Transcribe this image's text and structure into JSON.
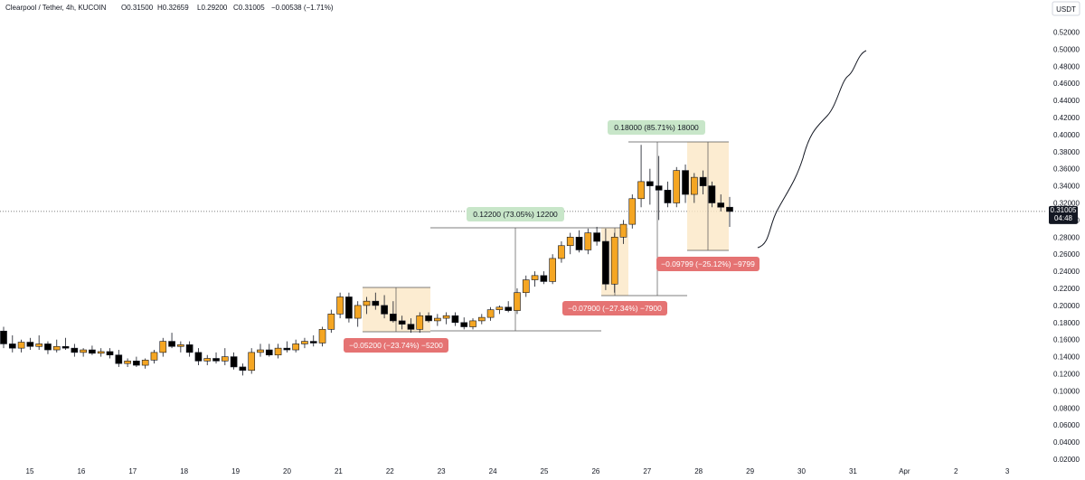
{
  "header": {
    "symbol": "Clearpool / Tether, 4h, KUCOIN",
    "open": "O0.31500",
    "high": "H0.32659",
    "low": "L0.29200",
    "close": "C0.31005",
    "change": "−0.00538 (−1.71%)"
  },
  "currency": "USDT",
  "price_badge": {
    "price": "0.31005",
    "countdown": "04:48"
  },
  "colors": {
    "up": "#f5a623",
    "down": "#000000",
    "box_fill": "#fbe7c6",
    "gain_label": "#c8e6c9",
    "loss_label": "#e57373",
    "text": "#131722"
  },
  "chart_data": {
    "type": "candlestick",
    "interval": "4h",
    "current_price": 0.31005,
    "y_axis": {
      "ticks": [
        "0.02000",
        "0.04000",
        "0.06000",
        "0.08000",
        "0.10000",
        "0.12000",
        "0.14000",
        "0.16000",
        "0.18000",
        "0.20000",
        "0.22000",
        "0.24000",
        "0.26000",
        "0.28000",
        "0.30000",
        "0.32000",
        "0.34000",
        "0.36000",
        "0.38000",
        "0.40000",
        "0.42000",
        "0.44000",
        "0.46000",
        "0.48000",
        "0.50000",
        "0.52000"
      ],
      "ylim": [
        0,
        0.53
      ]
    },
    "x_axis": {
      "ticks": [
        "15",
        "16",
        "17",
        "18",
        "19",
        "20",
        "21",
        "22",
        "23",
        "24",
        "25",
        "26",
        "27",
        "28",
        "29",
        "30",
        "31",
        "Apr",
        "2",
        "3"
      ]
    },
    "candles": [
      {
        "o": 0.17,
        "h": 0.175,
        "l": 0.15,
        "c": 0.155
      },
      {
        "o": 0.155,
        "h": 0.165,
        "l": 0.145,
        "c": 0.15
      },
      {
        "o": 0.15,
        "h": 0.16,
        "l": 0.145,
        "c": 0.157
      },
      {
        "o": 0.157,
        "h": 0.162,
        "l": 0.148,
        "c": 0.152
      },
      {
        "o": 0.152,
        "h": 0.165,
        "l": 0.148,
        "c": 0.155
      },
      {
        "o": 0.155,
        "h": 0.158,
        "l": 0.143,
        "c": 0.148
      },
      {
        "o": 0.148,
        "h": 0.16,
        "l": 0.145,
        "c": 0.152
      },
      {
        "o": 0.152,
        "h": 0.162,
        "l": 0.148,
        "c": 0.15
      },
      {
        "o": 0.15,
        "h": 0.155,
        "l": 0.14,
        "c": 0.145
      },
      {
        "o": 0.145,
        "h": 0.15,
        "l": 0.14,
        "c": 0.148
      },
      {
        "o": 0.148,
        "h": 0.153,
        "l": 0.142,
        "c": 0.144
      },
      {
        "o": 0.144,
        "h": 0.15,
        "l": 0.14,
        "c": 0.146
      },
      {
        "o": 0.146,
        "h": 0.15,
        "l": 0.138,
        "c": 0.142
      },
      {
        "o": 0.142,
        "h": 0.148,
        "l": 0.128,
        "c": 0.132
      },
      {
        "o": 0.132,
        "h": 0.138,
        "l": 0.128,
        "c": 0.135
      },
      {
        "o": 0.135,
        "h": 0.14,
        "l": 0.128,
        "c": 0.13
      },
      {
        "o": 0.13,
        "h": 0.138,
        "l": 0.126,
        "c": 0.136
      },
      {
        "o": 0.136,
        "h": 0.148,
        "l": 0.132,
        "c": 0.145
      },
      {
        "o": 0.145,
        "h": 0.162,
        "l": 0.14,
        "c": 0.158
      },
      {
        "o": 0.158,
        "h": 0.168,
        "l": 0.15,
        "c": 0.152
      },
      {
        "o": 0.152,
        "h": 0.158,
        "l": 0.145,
        "c": 0.154
      },
      {
        "o": 0.154,
        "h": 0.158,
        "l": 0.14,
        "c": 0.145
      },
      {
        "o": 0.145,
        "h": 0.15,
        "l": 0.13,
        "c": 0.135
      },
      {
        "o": 0.135,
        "h": 0.142,
        "l": 0.13,
        "c": 0.138
      },
      {
        "o": 0.138,
        "h": 0.145,
        "l": 0.132,
        "c": 0.135
      },
      {
        "o": 0.135,
        "h": 0.15,
        "l": 0.13,
        "c": 0.14
      },
      {
        "o": 0.14,
        "h": 0.145,
        "l": 0.125,
        "c": 0.128
      },
      {
        "o": 0.128,
        "h": 0.132,
        "l": 0.118,
        "c": 0.124
      },
      {
        "o": 0.124,
        "h": 0.15,
        "l": 0.12,
        "c": 0.145
      },
      {
        "o": 0.145,
        "h": 0.155,
        "l": 0.14,
        "c": 0.148
      },
      {
        "o": 0.148,
        "h": 0.155,
        "l": 0.14,
        "c": 0.142
      },
      {
        "o": 0.142,
        "h": 0.155,
        "l": 0.138,
        "c": 0.15
      },
      {
        "o": 0.15,
        "h": 0.158,
        "l": 0.145,
        "c": 0.148
      },
      {
        "o": 0.148,
        "h": 0.16,
        "l": 0.145,
        "c": 0.155
      },
      {
        "o": 0.155,
        "h": 0.162,
        "l": 0.15,
        "c": 0.158
      },
      {
        "o": 0.158,
        "h": 0.165,
        "l": 0.152,
        "c": 0.156
      },
      {
        "o": 0.156,
        "h": 0.175,
        "l": 0.152,
        "c": 0.172
      },
      {
        "o": 0.172,
        "h": 0.195,
        "l": 0.168,
        "c": 0.19
      },
      {
        "o": 0.19,
        "h": 0.215,
        "l": 0.185,
        "c": 0.21
      },
      {
        "o": 0.21,
        "h": 0.215,
        "l": 0.18,
        "c": 0.185
      },
      {
        "o": 0.185,
        "h": 0.205,
        "l": 0.175,
        "c": 0.2
      },
      {
        "o": 0.2,
        "h": 0.21,
        "l": 0.19,
        "c": 0.205
      },
      {
        "o": 0.205,
        "h": 0.215,
        "l": 0.195,
        "c": 0.2
      },
      {
        "o": 0.2,
        "h": 0.212,
        "l": 0.185,
        "c": 0.19
      },
      {
        "o": 0.19,
        "h": 0.205,
        "l": 0.18,
        "c": 0.182
      },
      {
        "o": 0.182,
        "h": 0.188,
        "l": 0.172,
        "c": 0.178
      },
      {
        "o": 0.178,
        "h": 0.185,
        "l": 0.168,
        "c": 0.172
      },
      {
        "o": 0.172,
        "h": 0.192,
        "l": 0.168,
        "c": 0.188
      },
      {
        "o": 0.188,
        "h": 0.192,
        "l": 0.18,
        "c": 0.182
      },
      {
        "o": 0.182,
        "h": 0.19,
        "l": 0.176,
        "c": 0.185
      },
      {
        "o": 0.185,
        "h": 0.192,
        "l": 0.178,
        "c": 0.188
      },
      {
        "o": 0.188,
        "h": 0.192,
        "l": 0.176,
        "c": 0.18
      },
      {
        "o": 0.18,
        "h": 0.186,
        "l": 0.172,
        "c": 0.175
      },
      {
        "o": 0.175,
        "h": 0.185,
        "l": 0.172,
        "c": 0.182
      },
      {
        "o": 0.182,
        "h": 0.19,
        "l": 0.178,
        "c": 0.186
      },
      {
        "o": 0.186,
        "h": 0.198,
        "l": 0.182,
        "c": 0.195
      },
      {
        "o": 0.195,
        "h": 0.2,
        "l": 0.19,
        "c": 0.198
      },
      {
        "o": 0.198,
        "h": 0.205,
        "l": 0.192,
        "c": 0.194
      },
      {
        "o": 0.194,
        "h": 0.22,
        "l": 0.19,
        "c": 0.215
      },
      {
        "o": 0.215,
        "h": 0.235,
        "l": 0.21,
        "c": 0.23
      },
      {
        "o": 0.23,
        "h": 0.24,
        "l": 0.222,
        "c": 0.235
      },
      {
        "o": 0.235,
        "h": 0.24,
        "l": 0.225,
        "c": 0.228
      },
      {
        "o": 0.228,
        "h": 0.26,
        "l": 0.225,
        "c": 0.255
      },
      {
        "o": 0.255,
        "h": 0.275,
        "l": 0.25,
        "c": 0.27
      },
      {
        "o": 0.27,
        "h": 0.285,
        "l": 0.26,
        "c": 0.28
      },
      {
        "o": 0.28,
        "h": 0.288,
        "l": 0.262,
        "c": 0.265
      },
      {
        "o": 0.265,
        "h": 0.29,
        "l": 0.26,
        "c": 0.285
      },
      {
        "o": 0.285,
        "h": 0.292,
        "l": 0.27,
        "c": 0.275
      },
      {
        "o": 0.275,
        "h": 0.29,
        "l": 0.218,
        "c": 0.225
      },
      {
        "o": 0.225,
        "h": 0.285,
        "l": 0.215,
        "c": 0.28
      },
      {
        "o": 0.28,
        "h": 0.3,
        "l": 0.272,
        "c": 0.295
      },
      {
        "o": 0.295,
        "h": 0.33,
        "l": 0.29,
        "c": 0.325
      },
      {
        "o": 0.325,
        "h": 0.388,
        "l": 0.315,
        "c": 0.345
      },
      {
        "o": 0.345,
        "h": 0.36,
        "l": 0.318,
        "c": 0.34
      },
      {
        "o": 0.34,
        "h": 0.375,
        "l": 0.3,
        "c": 0.335
      },
      {
        "o": 0.335,
        "h": 0.345,
        "l": 0.315,
        "c": 0.32
      },
      {
        "o": 0.32,
        "h": 0.362,
        "l": 0.315,
        "c": 0.358
      },
      {
        "o": 0.358,
        "h": 0.365,
        "l": 0.32,
        "c": 0.33
      },
      {
        "o": 0.33,
        "h": 0.355,
        "l": 0.32,
        "c": 0.35
      },
      {
        "o": 0.35,
        "h": 0.358,
        "l": 0.33,
        "c": 0.34
      },
      {
        "o": 0.34,
        "h": 0.345,
        "l": 0.315,
        "c": 0.32
      },
      {
        "o": 0.32,
        "h": 0.33,
        "l": 0.31,
        "c": 0.315
      },
      {
        "o": 0.315,
        "h": 0.327,
        "l": 0.292,
        "c": 0.31
      }
    ],
    "annotations": {
      "loss_1": "−0.05200 (−23.74%) −5200",
      "gain_1": "0.12200 (73.05%) 12200",
      "loss_2": "−0.07900 (−27.34%) −7900",
      "gain_2": "0.18000 (85.71%) 18000",
      "loss_3": "−0.09799 (−25.12%) −9799"
    }
  }
}
